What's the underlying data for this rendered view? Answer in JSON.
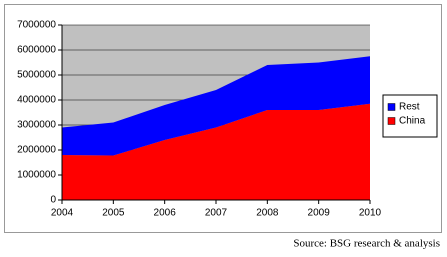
{
  "chart_data": {
    "type": "stacked_area",
    "x": [
      2004,
      2005,
      2006,
      2007,
      2008,
      2009,
      2010
    ],
    "series": [
      {
        "name": "China",
        "color": "#ff0000",
        "values": [
          1800000,
          1780000,
          2400000,
          2900000,
          3600000,
          3600000,
          3850000
        ]
      },
      {
        "name": "Rest",
        "color": "#0000ff",
        "values": [
          1100000,
          1320000,
          1400000,
          1500000,
          1800000,
          1900000,
          1900000
        ]
      }
    ],
    "xlim": [
      2004,
      2010
    ],
    "xticks": [
      2004,
      2005,
      2006,
      2007,
      2008,
      2009,
      2010
    ],
    "ylim": [
      0,
      7000000
    ],
    "yticks": [
      0,
      1000000,
      2000000,
      3000000,
      4000000,
      5000000,
      6000000,
      7000000
    ],
    "grid": true,
    "legend": "right",
    "plot_background": "#c0c0c0",
    "source": "Source: BSG research & analysis"
  }
}
